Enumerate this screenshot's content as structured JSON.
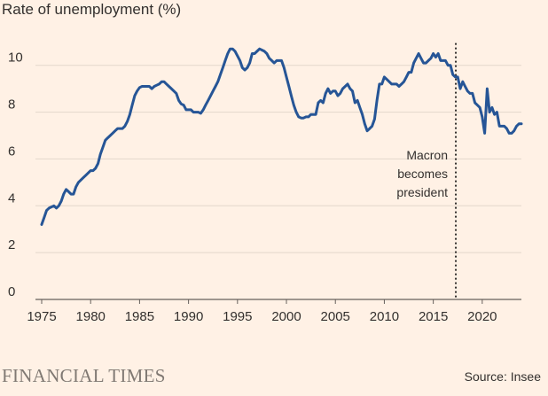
{
  "chart_data": {
    "type": "line",
    "title": "Rate of unemployment (%)",
    "xlabel": "",
    "ylabel": "",
    "xlim": [
      1975,
      2024
    ],
    "ylim": [
      0,
      11.2
    ],
    "x_ticks": [
      1975,
      1980,
      1985,
      1990,
      1995,
      2000,
      2005,
      2010,
      2015,
      2020
    ],
    "y_ticks": [
      0,
      2,
      4,
      6,
      8,
      10
    ],
    "grid": "horizontal",
    "line_color": "#265596",
    "series": [
      {
        "name": "",
        "points": [
          [
            1975.0,
            3.2
          ],
          [
            1975.25,
            3.5
          ],
          [
            1975.5,
            3.8
          ],
          [
            1975.75,
            3.9
          ],
          [
            1976.0,
            3.95
          ],
          [
            1976.25,
            4.0
          ],
          [
            1976.5,
            3.9
          ],
          [
            1976.75,
            4.0
          ],
          [
            1977.0,
            4.2
          ],
          [
            1977.25,
            4.5
          ],
          [
            1977.5,
            4.7
          ],
          [
            1977.75,
            4.6
          ],
          [
            1978.0,
            4.5
          ],
          [
            1978.25,
            4.5
          ],
          [
            1978.5,
            4.8
          ],
          [
            1978.75,
            5.0
          ],
          [
            1979.0,
            5.1
          ],
          [
            1979.25,
            5.2
          ],
          [
            1979.5,
            5.3
          ],
          [
            1979.75,
            5.4
          ],
          [
            1980.0,
            5.5
          ],
          [
            1980.25,
            5.5
          ],
          [
            1980.5,
            5.6
          ],
          [
            1980.75,
            5.8
          ],
          [
            1981.0,
            6.2
          ],
          [
            1981.25,
            6.5
          ],
          [
            1981.5,
            6.8
          ],
          [
            1981.75,
            6.9
          ],
          [
            1982.0,
            7.0
          ],
          [
            1982.25,
            7.1
          ],
          [
            1982.5,
            7.2
          ],
          [
            1982.75,
            7.3
          ],
          [
            1983.0,
            7.3
          ],
          [
            1983.25,
            7.3
          ],
          [
            1983.5,
            7.4
          ],
          [
            1983.75,
            7.6
          ],
          [
            1984.0,
            7.9
          ],
          [
            1984.25,
            8.3
          ],
          [
            1984.5,
            8.7
          ],
          [
            1984.75,
            8.9
          ],
          [
            1985.0,
            9.05
          ],
          [
            1985.25,
            9.1
          ],
          [
            1985.5,
            9.1
          ],
          [
            1985.75,
            9.1
          ],
          [
            1986.0,
            9.1
          ],
          [
            1986.25,
            9.0
          ],
          [
            1986.5,
            9.1
          ],
          [
            1986.75,
            9.15
          ],
          [
            1987.0,
            9.2
          ],
          [
            1987.25,
            9.3
          ],
          [
            1987.5,
            9.3
          ],
          [
            1987.75,
            9.2
          ],
          [
            1988.0,
            9.1
          ],
          [
            1988.25,
            9.0
          ],
          [
            1988.5,
            8.9
          ],
          [
            1988.75,
            8.8
          ],
          [
            1989.0,
            8.5
          ],
          [
            1989.25,
            8.35
          ],
          [
            1989.5,
            8.3
          ],
          [
            1989.75,
            8.1
          ],
          [
            1990.0,
            8.1
          ],
          [
            1990.25,
            8.1
          ],
          [
            1990.5,
            8.0
          ],
          [
            1990.75,
            8.0
          ],
          [
            1991.0,
            8.0
          ],
          [
            1991.25,
            7.95
          ],
          [
            1991.5,
            8.1
          ],
          [
            1991.75,
            8.3
          ],
          [
            1992.0,
            8.5
          ],
          [
            1992.25,
            8.7
          ],
          [
            1992.5,
            8.9
          ],
          [
            1992.75,
            9.1
          ],
          [
            1993.0,
            9.3
          ],
          [
            1993.25,
            9.6
          ],
          [
            1993.5,
            9.9
          ],
          [
            1993.75,
            10.2
          ],
          [
            1994.0,
            10.5
          ],
          [
            1994.25,
            10.7
          ],
          [
            1994.5,
            10.7
          ],
          [
            1994.75,
            10.6
          ],
          [
            1995.0,
            10.4
          ],
          [
            1995.25,
            10.2
          ],
          [
            1995.5,
            9.9
          ],
          [
            1995.75,
            9.8
          ],
          [
            1996.0,
            9.9
          ],
          [
            1996.25,
            10.1
          ],
          [
            1996.5,
            10.5
          ],
          [
            1996.75,
            10.5
          ],
          [
            1997.0,
            10.6
          ],
          [
            1997.25,
            10.7
          ],
          [
            1997.5,
            10.65
          ],
          [
            1997.75,
            10.6
          ],
          [
            1998.0,
            10.5
          ],
          [
            1998.25,
            10.3
          ],
          [
            1998.5,
            10.2
          ],
          [
            1998.75,
            10.1
          ],
          [
            1999.0,
            10.2
          ],
          [
            1999.25,
            10.2
          ],
          [
            1999.5,
            10.2
          ],
          [
            1999.75,
            9.9
          ],
          [
            2000.0,
            9.5
          ],
          [
            2000.25,
            9.1
          ],
          [
            2000.5,
            8.7
          ],
          [
            2000.75,
            8.3
          ],
          [
            2001.0,
            8.0
          ],
          [
            2001.25,
            7.8
          ],
          [
            2001.5,
            7.75
          ],
          [
            2001.75,
            7.75
          ],
          [
            2002.0,
            7.8
          ],
          [
            2002.25,
            7.8
          ],
          [
            2002.5,
            7.9
          ],
          [
            2002.75,
            7.9
          ],
          [
            2003.0,
            7.9
          ],
          [
            2003.25,
            8.4
          ],
          [
            2003.5,
            8.5
          ],
          [
            2003.75,
            8.4
          ],
          [
            2004.0,
            8.8
          ],
          [
            2004.25,
            9.0
          ],
          [
            2004.5,
            8.8
          ],
          [
            2004.75,
            8.9
          ],
          [
            2005.0,
            8.9
          ],
          [
            2005.25,
            8.7
          ],
          [
            2005.5,
            8.8
          ],
          [
            2005.75,
            9.0
          ],
          [
            2006.0,
            9.1
          ],
          [
            2006.25,
            9.2
          ],
          [
            2006.5,
            9.0
          ],
          [
            2006.75,
            8.9
          ],
          [
            2007.0,
            8.4
          ],
          [
            2007.25,
            8.5
          ],
          [
            2007.5,
            8.2
          ],
          [
            2007.75,
            7.9
          ],
          [
            2008.0,
            7.5
          ],
          [
            2008.25,
            7.2
          ],
          [
            2008.5,
            7.3
          ],
          [
            2008.75,
            7.4
          ],
          [
            2009.0,
            7.7
          ],
          [
            2009.25,
            8.5
          ],
          [
            2009.5,
            9.2
          ],
          [
            2009.75,
            9.2
          ],
          [
            2010.0,
            9.5
          ],
          [
            2010.25,
            9.4
          ],
          [
            2010.5,
            9.3
          ],
          [
            2010.75,
            9.2
          ],
          [
            2011.0,
            9.2
          ],
          [
            2011.25,
            9.2
          ],
          [
            2011.5,
            9.1
          ],
          [
            2011.75,
            9.2
          ],
          [
            2012.0,
            9.3
          ],
          [
            2012.25,
            9.5
          ],
          [
            2012.5,
            9.7
          ],
          [
            2012.75,
            9.7
          ],
          [
            2013.0,
            10.1
          ],
          [
            2013.25,
            10.3
          ],
          [
            2013.5,
            10.5
          ],
          [
            2013.75,
            10.3
          ],
          [
            2014.0,
            10.1
          ],
          [
            2014.25,
            10.1
          ],
          [
            2014.5,
            10.2
          ],
          [
            2014.75,
            10.3
          ],
          [
            2015.0,
            10.5
          ],
          [
            2015.25,
            10.35
          ],
          [
            2015.5,
            10.5
          ],
          [
            2015.75,
            10.2
          ],
          [
            2016.0,
            10.2
          ],
          [
            2016.25,
            10.2
          ],
          [
            2016.5,
            10.0
          ],
          [
            2016.75,
            10.0
          ],
          [
            2017.0,
            9.6
          ],
          [
            2017.25,
            9.5
          ],
          [
            2017.5,
            9.5
          ],
          [
            2017.75,
            9.0
          ],
          [
            2018.0,
            9.3
          ],
          [
            2018.25,
            9.1
          ],
          [
            2018.5,
            8.9
          ],
          [
            2018.75,
            8.8
          ],
          [
            2019.0,
            8.8
          ],
          [
            2019.25,
            8.4
          ],
          [
            2019.5,
            8.3
          ],
          [
            2019.75,
            8.2
          ],
          [
            2020.0,
            7.8
          ],
          [
            2020.25,
            7.1
          ],
          [
            2020.5,
            9.0
          ],
          [
            2020.75,
            8.0
          ],
          [
            2021.0,
            8.2
          ],
          [
            2021.25,
            7.9
          ],
          [
            2021.5,
            8.0
          ],
          [
            2021.75,
            7.4
          ],
          [
            2022.0,
            7.4
          ],
          [
            2022.25,
            7.4
          ],
          [
            2022.5,
            7.3
          ],
          [
            2022.75,
            7.1
          ],
          [
            2023.0,
            7.1
          ],
          [
            2023.25,
            7.2
          ],
          [
            2023.5,
            7.4
          ],
          [
            2023.75,
            7.5
          ],
          [
            2024.0,
            7.5
          ]
        ]
      }
    ],
    "marker": {
      "x": 2017.3,
      "style": "dotted",
      "annotation": [
        "Macron",
        "becomes",
        "president"
      ]
    }
  },
  "footer": {
    "brand": "FINANCIAL TIMES",
    "source": "Source: Insee"
  }
}
